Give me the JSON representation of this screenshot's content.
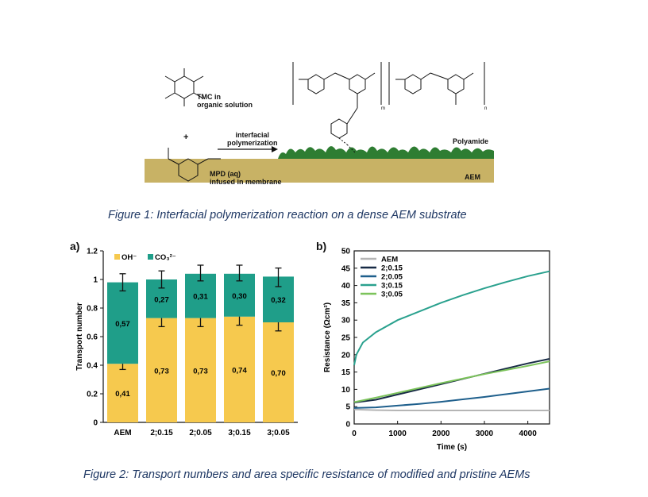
{
  "figure1": {
    "caption": "Figure 1: Interfacial polymerization reaction on a dense AEM substrate",
    "labels": {
      "tmc": "TMC in\norganic solution",
      "plus": "+",
      "arrow": "interfacial\npolymerization",
      "mpd": "MPD (aq)\ninfused in membrane",
      "polyamide": "Polyamide",
      "aem": "AEM",
      "sub_m": "m",
      "sub_n": "n"
    },
    "colors": {
      "membrane": "#c8b265",
      "polyamide": "#2e7d32"
    }
  },
  "figure2": {
    "caption": "Figure 2: Transport numbers and area specific resistance of modified and pristine AEMs",
    "panel_a_label": "a)",
    "panel_b_label": "b)"
  },
  "chart_data": [
    {
      "type": "bar",
      "stacked": true,
      "title": "",
      "xlabel": "",
      "ylabel": "Transport number",
      "ylim": [
        0,
        1.2
      ],
      "yticks": [
        "0",
        "0.2",
        "0.4",
        "0.6",
        "0.8",
        "1",
        "1.2"
      ],
      "yticks_values": [
        0,
        0.2,
        0.4,
        0.6,
        0.8,
        1.0,
        1.2
      ],
      "categories": [
        "AEM",
        "2;0.15",
        "2;0.05",
        "3;0.15",
        "3;0.05"
      ],
      "series": [
        {
          "name": "OH⁻",
          "color": "#f6c94e",
          "values": [
            0.41,
            0.73,
            0.73,
            0.74,
            0.7
          ],
          "labels": [
            "0,41",
            "0,73",
            "0,73",
            "0,74",
            "0,70"
          ],
          "error_top": [
            0.44,
            0.79,
            0.79,
            0.8,
            0.76
          ],
          "error_bottom": [
            0.37,
            0.67,
            0.67,
            0.68,
            0.64
          ]
        },
        {
          "name": "CO₃²⁻",
          "color": "#1f9e89",
          "values": [
            0.57,
            0.27,
            0.31,
            0.3,
            0.32
          ],
          "labels": [
            "0,57",
            "0,27",
            "0,31",
            "0,30",
            "0,32"
          ],
          "error_top": [
            1.04,
            1.06,
            1.1,
            1.1,
            1.08
          ],
          "error_bottom": [
            0.92,
            0.94,
            0.99,
            0.99,
            0.95
          ]
        }
      ],
      "legend": "top-left"
    },
    {
      "type": "line",
      "title": "",
      "xlabel": "Time (s)",
      "ylabel": "Resistance (Ωcm²)",
      "xlim": [
        0,
        4500
      ],
      "ylim": [
        0,
        50
      ],
      "xticks": [
        "0",
        "1000",
        "2000",
        "3000",
        "4000"
      ],
      "xticks_values": [
        0,
        1000,
        2000,
        3000,
        4000
      ],
      "yticks": [
        "0",
        "5",
        "10",
        "15",
        "20",
        "25",
        "30",
        "35",
        "40",
        "45",
        "50"
      ],
      "yticks_values": [
        0,
        5,
        10,
        15,
        20,
        25,
        30,
        35,
        40,
        45,
        50
      ],
      "legend": "top-left",
      "series": [
        {
          "name": "AEM",
          "color": "#b5b5b5",
          "x": [
            0,
            500,
            1000,
            2000,
            3000,
            4000,
            4500
          ],
          "y": [
            4.2,
            4.0,
            3.9,
            3.9,
            3.9,
            3.9,
            3.9
          ]
        },
        {
          "name": "2;0.15",
          "color": "#172a45",
          "x": [
            0,
            500,
            1000,
            1500,
            2000,
            2500,
            3000,
            3500,
            4000,
            4500
          ],
          "y": [
            6.2,
            7.0,
            8.5,
            10.0,
            11.5,
            13.0,
            14.5,
            16.0,
            17.5,
            18.8
          ]
        },
        {
          "name": "2;0.05",
          "color": "#1e5f8c",
          "x": [
            0,
            500,
            1000,
            1500,
            2000,
            2500,
            3000,
            3500,
            4000,
            4500
          ],
          "y": [
            4.6,
            4.8,
            5.3,
            5.8,
            6.4,
            7.1,
            7.8,
            8.6,
            9.4,
            10.2
          ]
        },
        {
          "name": "3;0.15",
          "color": "#2aa18e",
          "x": [
            0,
            50,
            200,
            500,
            1000,
            1500,
            2000,
            2500,
            3000,
            3500,
            4000,
            4500
          ],
          "y": [
            17,
            20,
            23.5,
            26.5,
            30.0,
            32.5,
            35.0,
            37.2,
            39.2,
            41.0,
            42.7,
            44.1
          ]
        },
        {
          "name": "3;0.05",
          "color": "#7cc35b",
          "x": [
            0,
            500,
            1000,
            1500,
            2000,
            2500,
            3000,
            3500,
            4000,
            4500
          ],
          "y": [
            6.3,
            7.6,
            9.0,
            10.4,
            11.8,
            13.1,
            14.4,
            15.6,
            16.8,
            18.1
          ]
        }
      ]
    }
  ]
}
